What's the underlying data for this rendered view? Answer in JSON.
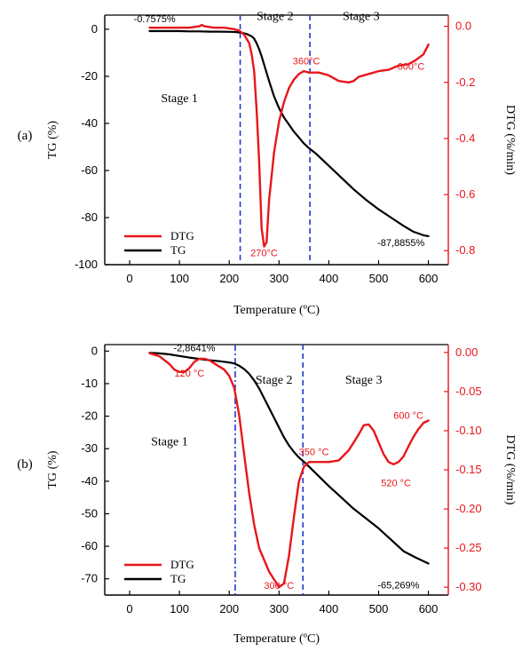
{
  "chart_data": [
    {
      "panel_label": "(a)",
      "type": "line",
      "xlabel": "Temperature (ºC)",
      "ylabel": "TG (%)",
      "y2label": "DTG (%/min)",
      "xlim": [
        -50,
        640
      ],
      "ylim": [
        -100,
        6
      ],
      "y2lim": [
        -0.85,
        0.04
      ],
      "xticks": [
        "0",
        "100",
        "200",
        "300",
        "400",
        "500",
        "600"
      ],
      "xtick_values": [
        0,
        100,
        200,
        300,
        400,
        500,
        600
      ],
      "yticks": [
        "0",
        "-20",
        "-40",
        "-60",
        "-80",
        "-100"
      ],
      "ytick_values": [
        0,
        -20,
        -40,
        -60,
        -80,
        -100
      ],
      "y2ticks": [
        "0.0",
        "-0.2",
        "-0.4",
        "-0.6",
        "-0.8"
      ],
      "y2tick_values": [
        0,
        -0.2,
        -0.4,
        -0.6,
        -0.8
      ],
      "stage_lines": [
        222,
        362
      ],
      "stages": [
        {
          "label": "Stage 1",
          "x": 100,
          "y": -31
        },
        {
          "label": "Stage 2",
          "x": 292,
          "y": 4
        },
        {
          "label": "Stage 3",
          "x": 465,
          "y": 4
        }
      ],
      "annotations": [
        {
          "text": "-0.7575%",
          "x": 50,
          "y": 3,
          "color": "black"
        },
        {
          "text": "-87,8855%",
          "x": 545,
          "y": -92,
          "color": "black"
        },
        {
          "text": "270°C",
          "x": 270,
          "y": -0.82,
          "axis": "y2",
          "color": "red"
        },
        {
          "text": "360°C",
          "x": 355,
          "y": -0.135,
          "axis": "y2",
          "color": "red"
        },
        {
          "text": "600°C",
          "x": 565,
          "y": -0.155,
          "axis": "y2",
          "color": "red"
        }
      ],
      "legend": {
        "position": "bottom-left",
        "entries": [
          "DTG",
          "TG"
        ]
      },
      "series": [
        {
          "name": "TG",
          "axis": "y",
          "color": "#000000",
          "x": [
            40,
            60,
            80,
            100,
            120,
            140,
            160,
            180,
            200,
            215,
            225,
            235,
            245,
            250,
            255,
            260,
            265,
            270,
            280,
            290,
            300,
            310,
            320,
            330,
            340,
            350,
            360,
            375,
            400,
            425,
            450,
            475,
            500,
            525,
            550,
            570,
            590,
            600
          ],
          "y": [
            -0.8,
            -0.8,
            -0.8,
            -0.8,
            -0.9,
            -0.9,
            -1.0,
            -1.0,
            -1.1,
            -1.2,
            -1.5,
            -2.0,
            -3.0,
            -4.0,
            -6.0,
            -8.5,
            -11.5,
            -15.0,
            -22.0,
            -28.5,
            -33.5,
            -37.5,
            -40.5,
            -43.5,
            -46.0,
            -48.5,
            -50.5,
            -53.0,
            -58.0,
            -63.0,
            -68.0,
            -72.5,
            -76.5,
            -80.0,
            -83.5,
            -86.0,
            -87.5,
            -87.9
          ]
        },
        {
          "name": "DTG",
          "axis": "y2",
          "color": "#e8161b",
          "x": [
            40,
            60,
            80,
            100,
            120,
            140,
            145,
            150,
            170,
            190,
            210,
            220,
            230,
            240,
            245,
            250,
            255,
            260,
            265,
            270,
            275,
            280,
            290,
            300,
            310,
            320,
            330,
            340,
            350,
            360,
            380,
            400,
            420,
            440,
            450,
            460,
            480,
            500,
            520,
            540,
            560,
            575,
            590,
            600
          ],
          "y": [
            -0.005,
            -0.005,
            -0.005,
            -0.005,
            -0.005,
            0.0,
            0.005,
            0.0,
            -0.005,
            -0.005,
            -0.01,
            -0.015,
            -0.03,
            -0.06,
            -0.1,
            -0.16,
            -0.3,
            -0.48,
            -0.72,
            -0.785,
            -0.77,
            -0.62,
            -0.45,
            -0.34,
            -0.27,
            -0.22,
            -0.19,
            -0.17,
            -0.16,
            -0.165,
            -0.165,
            -0.175,
            -0.195,
            -0.2,
            -0.195,
            -0.18,
            -0.17,
            -0.16,
            -0.155,
            -0.14,
            -0.135,
            -0.12,
            -0.1,
            -0.065
          ]
        }
      ]
    },
    {
      "panel_label": "(b)",
      "type": "line",
      "xlabel": "Temperature (ºC)",
      "ylabel": "TG (%)",
      "y2label": "DTG (%/min)",
      "xlim": [
        -50,
        640
      ],
      "ylim": [
        -75,
        2
      ],
      "y2lim": [
        -0.31,
        0.01
      ],
      "xticks": [
        "0",
        "100",
        "200",
        "300",
        "400",
        "500",
        "600"
      ],
      "xtick_values": [
        0,
        100,
        200,
        300,
        400,
        500,
        600
      ],
      "yticks": [
        "0",
        "-10",
        "-20",
        "-30",
        "-40",
        "-50",
        "-60",
        "-70"
      ],
      "ytick_values": [
        0,
        -10,
        -20,
        -30,
        -40,
        -50,
        -60,
        -70
      ],
      "y2ticks": [
        "0.00",
        "-0.05",
        "-0.10",
        "-0.15",
        "-0.20",
        "-0.25",
        "-0.30"
      ],
      "y2tick_values": [
        0,
        -0.05,
        -0.1,
        -0.15,
        -0.2,
        -0.25,
        -0.3
      ],
      "stage_lines": [
        212,
        348
      ],
      "stages": [
        {
          "label": "Stage 1",
          "x": 80,
          "y": -29
        },
        {
          "label": "Stage 2",
          "x": 290,
          "y": -10
        },
        {
          "label": "Stage 3",
          "x": 470,
          "y": -10
        }
      ],
      "annotations": [
        {
          "text": "-2,8641%",
          "x": 130,
          "y": 0,
          "color": "black"
        },
        {
          "text": "-65,269%",
          "x": 540,
          "y": -73,
          "color": "black"
        },
        {
          "text": "120 °C",
          "x": 120,
          "y": -0.031,
          "axis": "y2",
          "color": "red"
        },
        {
          "text": "300 °C",
          "x": 300,
          "y": -0.302,
          "axis": "y2",
          "color": "red"
        },
        {
          "text": "350 °C",
          "x": 370,
          "y": -0.131,
          "axis": "y2",
          "color": "red"
        },
        {
          "text": "520 °C",
          "x": 535,
          "y": -0.171,
          "axis": "y2",
          "color": "red"
        },
        {
          "text": "600 °C",
          "x": 560,
          "y": -0.085,
          "axis": "y2",
          "color": "red"
        }
      ],
      "legend": {
        "position": "bottom-left",
        "entries": [
          "DTG",
          "TG"
        ]
      },
      "series": [
        {
          "name": "TG",
          "axis": "y",
          "color": "#000000",
          "x": [
            40,
            60,
            80,
            100,
            120,
            140,
            160,
            180,
            200,
            210,
            220,
            230,
            240,
            250,
            260,
            270,
            280,
            290,
            300,
            310,
            320,
            330,
            340,
            350,
            360,
            380,
            400,
            425,
            450,
            475,
            500,
            525,
            550,
            575,
            600
          ],
          "y": [
            -0.5,
            -0.7,
            -1.0,
            -1.5,
            -2.0,
            -2.4,
            -2.8,
            -3.1,
            -3.5,
            -3.8,
            -4.5,
            -5.5,
            -7.0,
            -9.0,
            -11.5,
            -14.5,
            -17.5,
            -20.5,
            -23.5,
            -26.5,
            -29.0,
            -31.0,
            -32.7,
            -34.0,
            -35.5,
            -38.5,
            -41.5,
            -45.0,
            -48.5,
            -51.5,
            -54.5,
            -58.0,
            -61.5,
            -63.5,
            -65.3
          ]
        },
        {
          "name": "DTG",
          "axis": "y2",
          "color": "#e8161b",
          "x": [
            40,
            60,
            80,
            90,
            100,
            110,
            120,
            130,
            140,
            150,
            160,
            170,
            180,
            190,
            200,
            210,
            220,
            230,
            240,
            250,
            260,
            270,
            280,
            290,
            300,
            310,
            320,
            330,
            340,
            350,
            360,
            380,
            400,
            420,
            440,
            460,
            470,
            480,
            490,
            500,
            510,
            520,
            530,
            540,
            550,
            560,
            570,
            580,
            590,
            600
          ],
          "y": [
            -0.001,
            -0.005,
            -0.015,
            -0.022,
            -0.025,
            -0.025,
            -0.02,
            -0.012,
            -0.008,
            -0.008,
            -0.01,
            -0.014,
            -0.018,
            -0.022,
            -0.03,
            -0.045,
            -0.08,
            -0.13,
            -0.18,
            -0.22,
            -0.25,
            -0.265,
            -0.28,
            -0.29,
            -0.3,
            -0.295,
            -0.26,
            -0.21,
            -0.165,
            -0.146,
            -0.14,
            -0.14,
            -0.14,
            -0.138,
            -0.125,
            -0.105,
            -0.093,
            -0.092,
            -0.1,
            -0.115,
            -0.13,
            -0.14,
            -0.143,
            -0.14,
            -0.133,
            -0.12,
            -0.108,
            -0.098,
            -0.09,
            -0.087
          ]
        }
      ]
    }
  ]
}
